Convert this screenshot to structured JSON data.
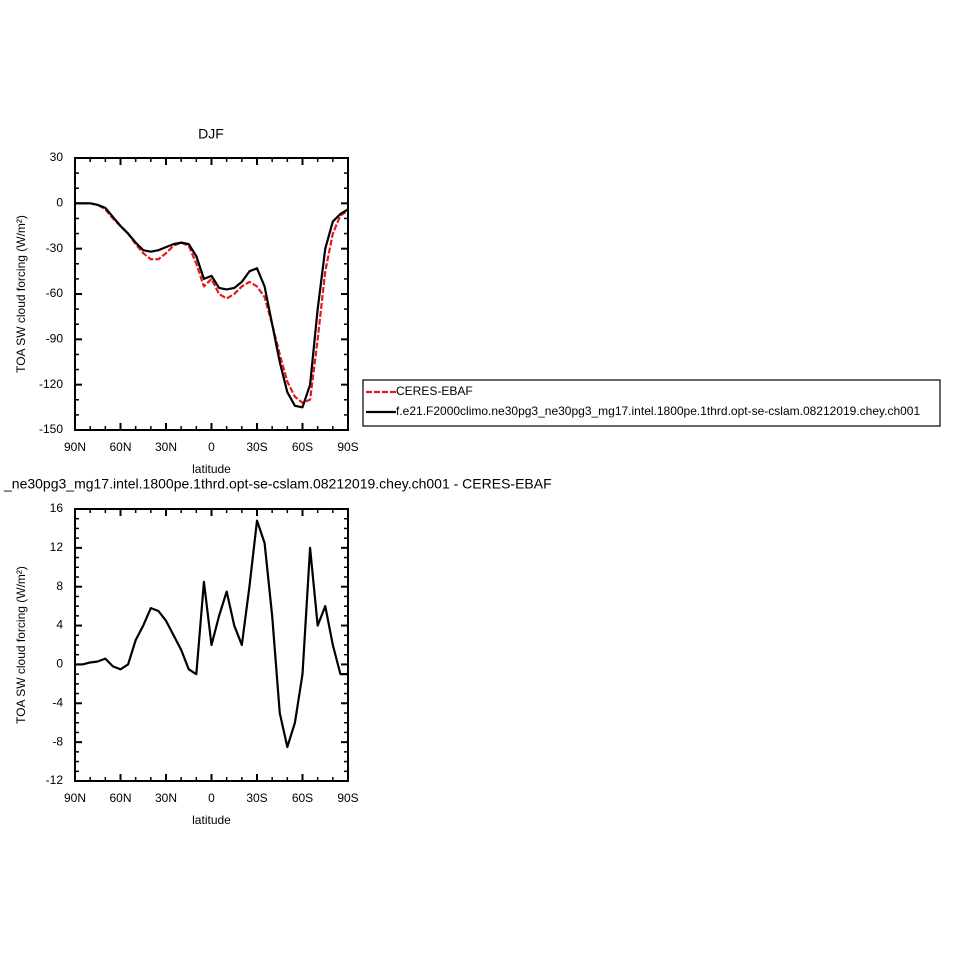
{
  "chart_data": [
    {
      "type": "line",
      "title": "DJF",
      "x_label": "latitude",
      "y_label": "TOA SW cloud forcing (W/m²)",
      "x": [
        90,
        85,
        80,
        75,
        70,
        65,
        60,
        55,
        50,
        45,
        40,
        35,
        30,
        25,
        20,
        15,
        10,
        5,
        0,
        -5,
        -10,
        -15,
        -20,
        -25,
        -30,
        -35,
        -40,
        -45,
        -50,
        -55,
        -60,
        -65,
        -70,
        -75,
        -80,
        -85,
        -90
      ],
      "series": [
        {
          "name": "CERES-EBAF",
          "color": "#e41a1c",
          "dash": true,
          "values": [
            0,
            0,
            0,
            -1,
            -4,
            -10,
            -15,
            -20,
            -27,
            -33,
            -37,
            -37,
            -33,
            -28,
            -26,
            -28,
            -40,
            -55,
            -50,
            -60,
            -63,
            -60,
            -55,
            -52,
            -55,
            -62,
            -80,
            -100,
            -118,
            -128,
            -132,
            -130,
            -90,
            -45,
            -20,
            -8,
            -5
          ]
        },
        {
          "name": "f.e21.F2000climo.ne30pg3_ne30pg3_mg17.intel.1800pe.1thrd.opt-se-cslam.08212019.chey.ch001",
          "color": "#000000",
          "dash": false,
          "values": [
            0,
            0,
            0,
            -1,
            -3,
            -9,
            -15,
            -20,
            -26,
            -31,
            -32,
            -31,
            -29,
            -27,
            -26,
            -27,
            -35,
            -50,
            -48,
            -56,
            -57,
            -56,
            -52,
            -45,
            -43,
            -55,
            -80,
            -105,
            -125,
            -134,
            -135,
            -120,
            -70,
            -30,
            -12,
            -7,
            -4
          ]
        }
      ],
      "xlim": [
        90,
        -90
      ],
      "xticks": [
        {
          "value": 90,
          "label": "90N"
        },
        {
          "value": 60,
          "label": "60N"
        },
        {
          "value": 30,
          "label": "30N"
        },
        0,
        {
          "value": -30,
          "label": "30S"
        },
        {
          "value": -60,
          "label": "60S"
        },
        {
          "value": -90,
          "label": "90S"
        }
      ],
      "ylim": [
        -150,
        30
      ],
      "yticks": [
        30,
        0,
        -30,
        -60,
        -90,
        -120,
        -150
      ],
      "legend": "right"
    },
    {
      "type": "line",
      "title": "_ne30pg3_mg17.intel.1800pe.1thrd.opt-se-cslam.08212019.chey.ch001 - CERES-EBAF",
      "x_label": "latitude",
      "y_label": "TOA SW cloud forcing (W/m²)",
      "x": [
        90,
        85,
        80,
        75,
        70,
        65,
        60,
        55,
        50,
        45,
        40,
        35,
        30,
        25,
        20,
        15,
        10,
        5,
        0,
        -5,
        -10,
        -15,
        -20,
        -25,
        -30,
        -35,
        -40,
        -45,
        -50,
        -55,
        -60,
        -65,
        -70,
        -75,
        -80,
        -85,
        -90
      ],
      "values": [
        0,
        0,
        0.2,
        0.3,
        0.6,
        -0.2,
        -0.5,
        0,
        2.5,
        4,
        5.8,
        5.5,
        4.5,
        3,
        1.5,
        -0.5,
        -1,
        8.5,
        2,
        5,
        7.5,
        4,
        2,
        8,
        14.8,
        12.5,
        5,
        -5,
        -8.5,
        -6,
        -1,
        12,
        4,
        6,
        2,
        -1,
        -1
      ],
      "color": "#000000",
      "xlim": [
        90,
        -90
      ],
      "xticks": [
        {
          "value": 90,
          "label": "90N"
        },
        {
          "value": 60,
          "label": "60N"
        },
        {
          "value": 30,
          "label": "30N"
        },
        0,
        {
          "value": -30,
          "label": "30S"
        },
        {
          "value": -60,
          "label": "60S"
        },
        {
          "value": -90,
          "label": "90S"
        }
      ],
      "ylim": [
        -12,
        16
      ],
      "yticks": [
        16,
        12,
        8,
        4,
        0,
        -4,
        -8,
        -12
      ]
    }
  ]
}
